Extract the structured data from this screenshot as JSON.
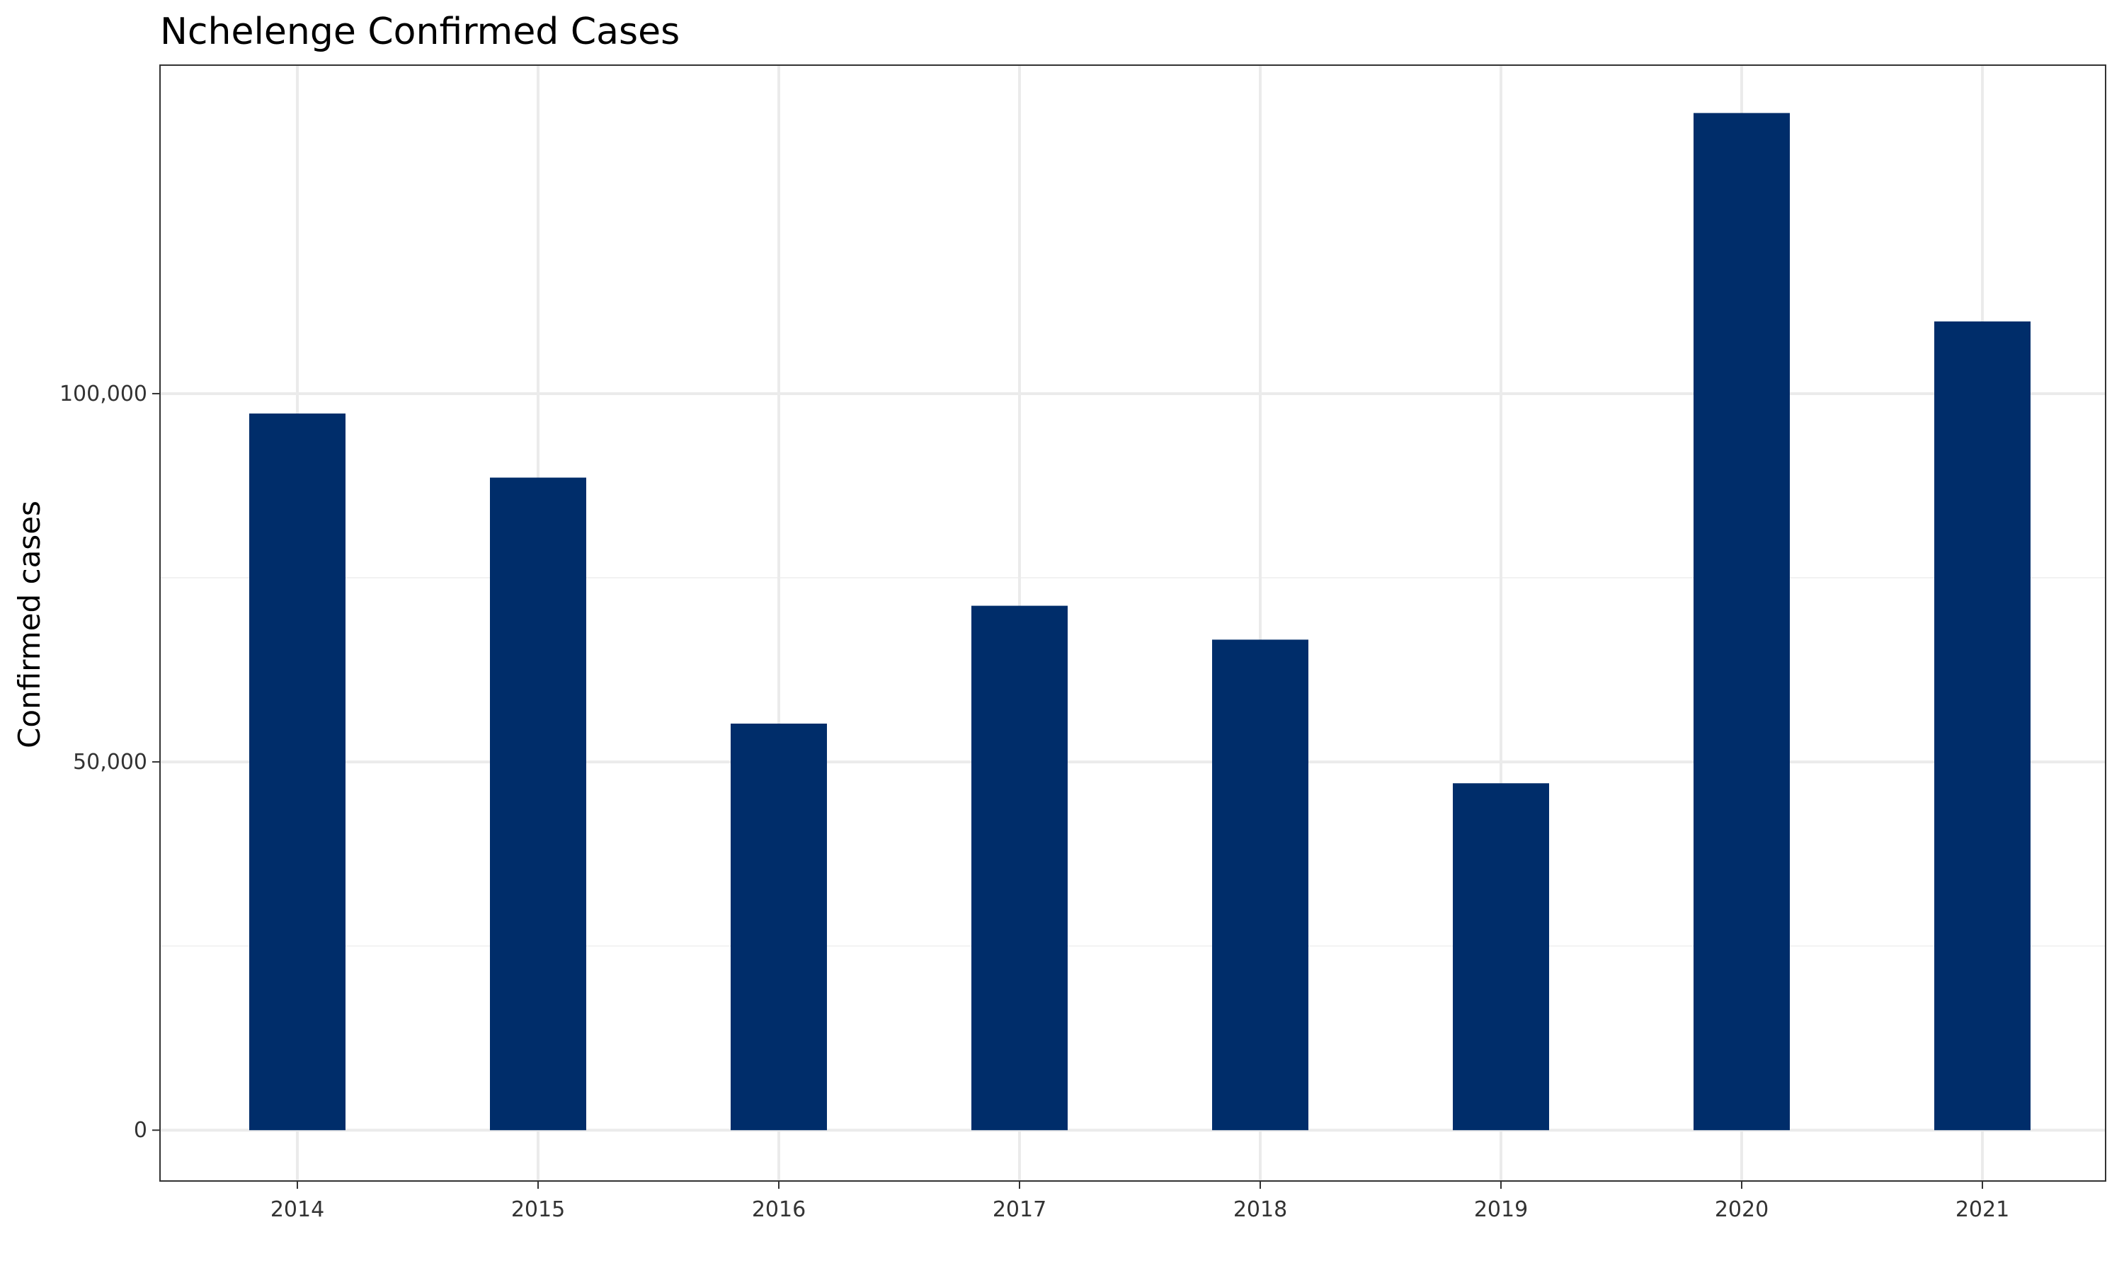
{
  "chart_data": {
    "type": "bar",
    "title": "Nchelenge Confirmed Cases",
    "xlabel": "",
    "ylabel": "Confirmed cases",
    "categories": [
      "2014",
      "2015",
      "2016",
      "2017",
      "2018",
      "2019",
      "2020",
      "2021"
    ],
    "values": [
      97300,
      88600,
      55200,
      71200,
      66600,
      47100,
      138100,
      109800
    ],
    "ylim": [
      -6900,
      144600
    ],
    "yticks": [
      0,
      50000,
      100000
    ],
    "ytick_labels": [
      "0",
      "50,000",
      "100,000"
    ],
    "grid": true,
    "legend": "none",
    "bar_color": "#002D6A"
  }
}
